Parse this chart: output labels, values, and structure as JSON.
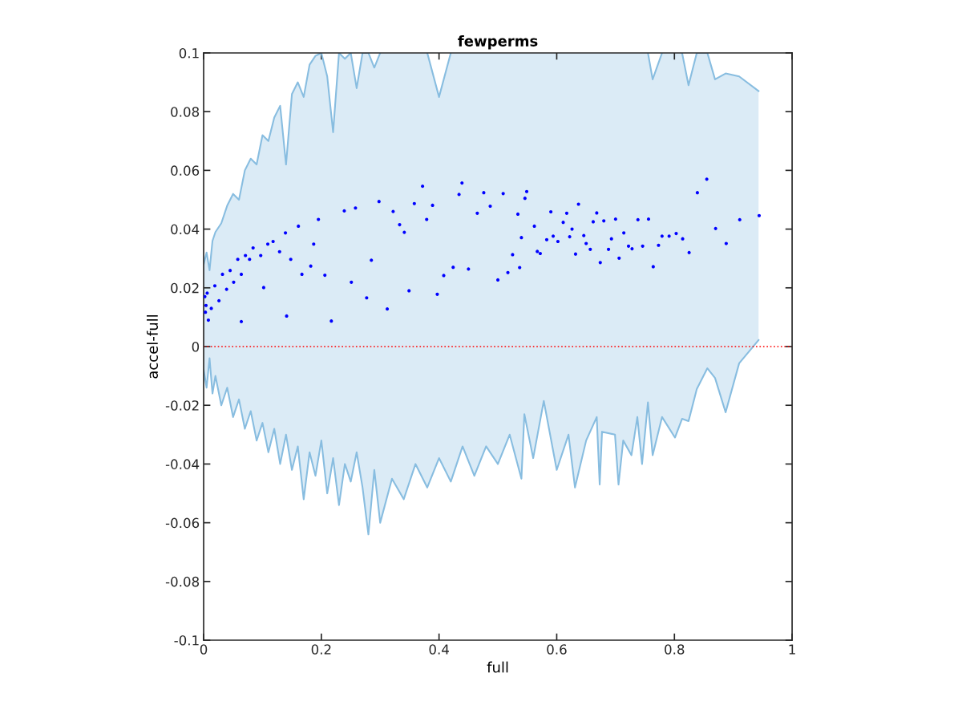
{
  "chart_data": {
    "type": "scatter",
    "title": "fewperms",
    "xlabel": "full",
    "ylabel": "accel-full",
    "xlim": [
      0,
      1
    ],
    "ylim": [
      -0.1,
      0.1
    ],
    "xticks": [
      0,
      0.2,
      0.4,
      0.6,
      0.8,
      1
    ],
    "yticks": [
      -0.1,
      -0.08,
      -0.06,
      -0.04,
      -0.02,
      0,
      0.02,
      0.04,
      0.06,
      0.08,
      0.1
    ],
    "grid": false,
    "legend": false,
    "ref_lines": [
      {
        "axis": "y",
        "value": 0,
        "color": "#ff0000",
        "line_style": "dotted"
      }
    ],
    "series": [
      {
        "type": "line",
        "color": "#88bde0",
        "x": [
          0,
          0.005,
          0.01,
          0.015,
          0.02,
          0.03,
          0.04,
          0.05,
          0.06,
          0.07,
          0.08,
          0.09,
          0.1,
          0.11,
          0.12,
          0.13,
          0.14,
          0.15,
          0.16,
          0.17,
          0.18,
          0.19,
          0.2,
          0.21,
          0.22,
          0.23,
          0.24,
          0.25,
          0.26,
          0.27,
          0.28,
          0.29,
          0.3,
          0.32,
          0.34,
          0.36,
          0.38,
          0.4,
          0.42,
          0.44,
          0.46,
          0.48,
          0.5,
          0.52,
          0.54,
          0.545,
          0.56,
          0.578,
          0.6,
          0.62,
          0.631,
          0.65,
          0.668,
          0.673,
          0.677,
          0.699,
          0.705,
          0.713,
          0.727,
          0.737,
          0.745,
          0.755,
          0.763,
          0.779,
          0.801,
          0.813,
          0.824,
          0.838,
          0.856,
          0.869,
          0.887,
          0.91,
          0.943
        ],
        "values": [
          0.028,
          0.032,
          0.026,
          0.036,
          0.039,
          0.042,
          0.048,
          0.052,
          0.05,
          0.06,
          0.064,
          0.062,
          0.072,
          0.07,
          0.078,
          0.082,
          0.062,
          0.086,
          0.09,
          0.085,
          0.096,
          0.099,
          0.1,
          0.092,
          0.073,
          0.1,
          0.098,
          0.1,
          0.088,
          0.1,
          0.1,
          0.095,
          0.1,
          null,
          null,
          null,
          0.1,
          0.085,
          0.1,
          null,
          null,
          null,
          null,
          null,
          null,
          null,
          null,
          null,
          null,
          null,
          null,
          null,
          null,
          null,
          null,
          null,
          null,
          null,
          null,
          null,
          null,
          0.1,
          0.091,
          0.1,
          null,
          0.1,
          0.089,
          0.1,
          0.1,
          0.091,
          0.093,
          0.092,
          0.087
        ],
        "upper": [
          0.028,
          0.032,
          0.026,
          0.036,
          0.039,
          0.042,
          0.048,
          0.052,
          0.05,
          0.06,
          0.064,
          0.062,
          0.072,
          0.07,
          0.078,
          0.082,
          0.062,
          0.086,
          0.09,
          0.085,
          0.096,
          0.099,
          0.1,
          0.092,
          0.073,
          0.1,
          0.098,
          0.1,
          0.088,
          0.1,
          0.1,
          0.095,
          0.1,
          0.1,
          0.1,
          0.1,
          0.1,
          0.085,
          0.1,
          0.1,
          0.1,
          0.1,
          0.1,
          0.1,
          0.1,
          0.1,
          0.1,
          0.1,
          0.1,
          0.1,
          0.1,
          0.1,
          0.1,
          0.1,
          0.1,
          0.1,
          0.1,
          0.1,
          0.1,
          0.1,
          0.1,
          0.1,
          0.091,
          0.1,
          0.1,
          0.1,
          0.089,
          0.1,
          0.1,
          0.091,
          0.093,
          0.092,
          0.087
        ],
        "lower": [
          -0.008,
          -0.014,
          -0.004,
          -0.016,
          -0.01,
          -0.02,
          -0.014,
          -0.024,
          -0.018,
          -0.028,
          -0.022,
          -0.032,
          -0.026,
          -0.036,
          -0.028,
          -0.04,
          -0.03,
          -0.042,
          -0.034,
          -0.052,
          -0.036,
          -0.044,
          -0.032,
          -0.05,
          -0.038,
          -0.054,
          -0.04,
          -0.046,
          -0.036,
          -0.048,
          -0.064,
          -0.042,
          -0.06,
          -0.045,
          -0.052,
          -0.04,
          -0.048,
          -0.038,
          -0.046,
          -0.034,
          -0.044,
          -0.034,
          -0.04,
          -0.03,
          -0.045,
          -0.023,
          -0.038,
          -0.0185,
          -0.042,
          -0.03,
          -0.048,
          -0.032,
          -0.024,
          -0.047,
          -0.029,
          -0.03,
          -0.047,
          -0.032,
          -0.037,
          -0.024,
          -0.04,
          -0.019,
          -0.037,
          -0.024,
          -0.031,
          -0.0246,
          -0.0254,
          -0.0145,
          -0.0074,
          -0.0107,
          -0.0224,
          -0.0057,
          0.0022
        ]
      },
      {
        "type": "line",
        "color": "#88bde0",
        "x": [
          0,
          0.005,
          0.01,
          0.015,
          0.02,
          0.03,
          0.04,
          0.05,
          0.06,
          0.07,
          0.08,
          0.09,
          0.1,
          0.11,
          0.12,
          0.13,
          0.14,
          0.15,
          0.16,
          0.17,
          0.18,
          0.19,
          0.2,
          0.21,
          0.22,
          0.23,
          0.24,
          0.25,
          0.26,
          0.27,
          0.28,
          0.29,
          0.3,
          0.32,
          0.34,
          0.36,
          0.38,
          0.4,
          0.42,
          0.44,
          0.46,
          0.48,
          0.5,
          0.52,
          0.54,
          0.545,
          0.56,
          0.578,
          0.6,
          0.62,
          0.631,
          0.65,
          0.668,
          0.673,
          0.677,
          0.699,
          0.705,
          0.713,
          0.727,
          0.737,
          0.745,
          0.755,
          0.763,
          0.779,
          0.801,
          0.813,
          0.824,
          0.838,
          0.856,
          0.869,
          0.887,
          0.91,
          0.943
        ],
        "values": [
          -0.008,
          -0.014,
          -0.004,
          -0.016,
          -0.01,
          -0.02,
          -0.014,
          -0.024,
          -0.018,
          -0.028,
          -0.022,
          -0.032,
          -0.026,
          -0.036,
          -0.028,
          -0.04,
          -0.03,
          -0.042,
          -0.034,
          -0.052,
          -0.036,
          -0.044,
          -0.032,
          -0.05,
          -0.038,
          -0.054,
          -0.04,
          -0.046,
          -0.036,
          -0.048,
          -0.064,
          -0.042,
          -0.06,
          -0.045,
          -0.052,
          -0.04,
          -0.048,
          -0.038,
          -0.046,
          -0.034,
          -0.044,
          -0.034,
          -0.04,
          -0.03,
          -0.045,
          -0.023,
          -0.038,
          -0.0185,
          -0.042,
          -0.03,
          -0.048,
          -0.032,
          -0.024,
          -0.047,
          -0.029,
          -0.03,
          -0.047,
          -0.032,
          -0.037,
          -0.024,
          -0.04,
          -0.019,
          -0.037,
          -0.024,
          -0.031,
          -0.0246,
          -0.0254,
          -0.0145,
          -0.0074,
          -0.0107,
          -0.0224,
          -0.0057,
          0.0022
        ]
      },
      {
        "marker": "circle",
        "color": "#0000ff",
        "x": [
          0.944,
          0.911,
          0.888,
          0.87,
          0.855,
          0.839,
          0.825,
          0.814,
          0.803,
          0.791,
          0.779,
          0.773,
          0.764,
          0.756,
          0.746,
          0.738,
          0.728,
          0.722,
          0.714,
          0.706,
          0.7,
          0.693,
          0.688,
          0.68,
          0.674,
          0.668,
          0.662,
          0.657,
          0.65,
          0.646,
          0.637,
          0.632,
          0.626,
          0.622,
          0.617,
          0.611,
          0.602,
          0.594,
          0.59,
          0.583,
          0.572,
          0.567,
          0.562,
          0.549,
          0.546,
          0.54,
          0.537,
          0.534,
          0.525,
          0.517,
          0.509,
          0.5,
          0.487,
          0.476,
          0.465,
          0.45,
          0.439,
          0.434,
          0.424,
          0.408,
          0.397,
          0.389,
          0.379,
          0.372,
          0.358,
          0.349,
          0.341,
          0.333,
          0.322,
          0.312,
          0.298,
          0.285,
          0.277,
          0.258,
          0.251,
          0.239,
          0.217,
          0.206,
          0.195,
          0.182,
          0.161,
          0.141,
          0.139,
          0.118,
          0.102,
          0.064,
          0.097,
          0.078,
          0.064,
          0.051,
          0.039,
          0.026,
          0.013,
          0.003,
          0.006,
          0.019,
          0.032,
          0.045,
          0.058,
          0.071,
          0.084,
          0.109,
          0.129,
          0.148,
          0.167,
          0.187,
          0.002,
          0.004,
          0.008
        ],
        "values": [
          0.0446,
          0.0432,
          0.0351,
          0.0402,
          0.057,
          0.0524,
          0.032,
          0.0367,
          0.0385,
          0.0376,
          0.0376,
          0.0345,
          0.0272,
          0.0434,
          0.0342,
          0.0432,
          0.0333,
          0.0342,
          0.0387,
          0.0301,
          0.0434,
          0.0367,
          0.0331,
          0.0428,
          0.0286,
          0.0455,
          0.0425,
          0.0331,
          0.0351,
          0.0378,
          0.0485,
          0.0315,
          0.04,
          0.0374,
          0.0454,
          0.0423,
          0.0358,
          0.0376,
          0.0459,
          0.0364,
          0.0317,
          0.0324,
          0.041,
          0.0528,
          0.0505,
          0.0371,
          0.0269,
          0.0451,
          0.0313,
          0.0252,
          0.0521,
          0.0227,
          0.0478,
          0.0524,
          0.0454,
          0.0264,
          0.0557,
          0.0518,
          0.027,
          0.0242,
          0.0178,
          0.0481,
          0.0433,
          0.0546,
          0.0487,
          0.019,
          0.0389,
          0.0415,
          0.046,
          0.0128,
          0.0494,
          0.0294,
          0.0166,
          0.0472,
          0.0219,
          0.0462,
          0.0087,
          0.0243,
          0.0433,
          0.0274,
          0.041,
          0.0104,
          0.0387,
          0.0358,
          0.0201,
          0.0085,
          0.031,
          0.0297,
          0.0246,
          0.0219,
          0.0195,
          0.0156,
          0.013,
          0.0117,
          0.0182,
          0.0207,
          0.0246,
          0.0259,
          0.0297,
          0.031,
          0.0336,
          0.0349,
          0.0323,
          0.0297,
          0.0246,
          0.0349,
          0.017,
          0.014,
          0.009
        ]
      }
    ]
  }
}
